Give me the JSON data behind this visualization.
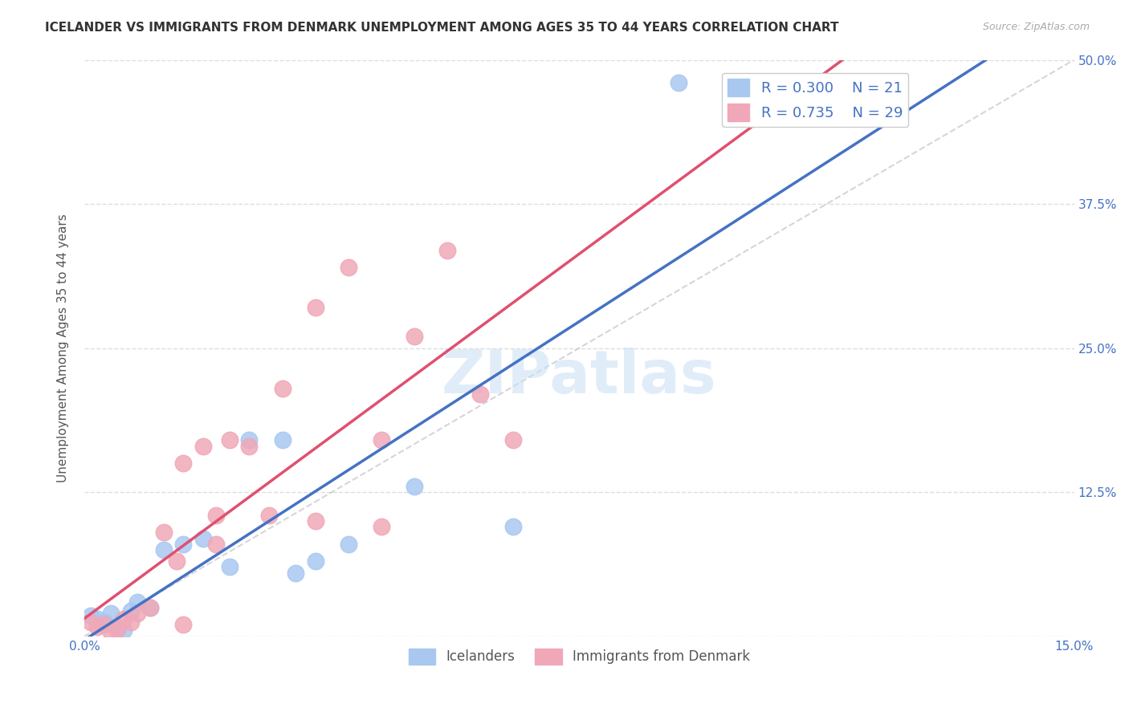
{
  "title": "ICELANDER VS IMMIGRANTS FROM DENMARK UNEMPLOYMENT AMONG AGES 35 TO 44 YEARS CORRELATION CHART",
  "source": "Source: ZipAtlas.com",
  "ylabel": "Unemployment Among Ages 35 to 44 years",
  "xlim": [
    0.0,
    0.15
  ],
  "ylim": [
    0.0,
    0.5
  ],
  "background_color": "#ffffff",
  "grid_color": "#dddddd",
  "watermark": "ZIPatlas",
  "icelanders_color": "#a8c8f0",
  "denmark_color": "#f0a8b8",
  "icelanders_line_color": "#4472c4",
  "denmark_line_color": "#e05070",
  "diagonal_line_color": "#cccccc",
  "legend_r_iceland": "0.300",
  "legend_n_iceland": "21",
  "legend_r_denmark": "0.735",
  "legend_n_denmark": "29",
  "icelanders_x": [
    0.001,
    0.002,
    0.003,
    0.004,
    0.005,
    0.006,
    0.007,
    0.008,
    0.01,
    0.012,
    0.015,
    0.018,
    0.022,
    0.025,
    0.03,
    0.032,
    0.035,
    0.04,
    0.05,
    0.065,
    0.09
  ],
  "icelanders_y": [
    0.018,
    0.015,
    0.012,
    0.02,
    0.008,
    0.005,
    0.022,
    0.03,
    0.025,
    0.075,
    0.08,
    0.085,
    0.06,
    0.17,
    0.17,
    0.055,
    0.065,
    0.08,
    0.13,
    0.095,
    0.48
  ],
  "denmark_x": [
    0.001,
    0.002,
    0.003,
    0.004,
    0.005,
    0.006,
    0.007,
    0.008,
    0.01,
    0.012,
    0.014,
    0.015,
    0.018,
    0.02,
    0.022,
    0.025,
    0.028,
    0.03,
    0.035,
    0.04,
    0.045,
    0.05,
    0.055,
    0.06,
    0.065,
    0.015,
    0.02,
    0.035,
    0.045
  ],
  "denmark_y": [
    0.012,
    0.008,
    0.01,
    0.004,
    0.006,
    0.015,
    0.012,
    0.02,
    0.025,
    0.09,
    0.065,
    0.15,
    0.165,
    0.08,
    0.17,
    0.165,
    0.105,
    0.215,
    0.285,
    0.32,
    0.17,
    0.26,
    0.335,
    0.21,
    0.17,
    0.01,
    0.105,
    0.1,
    0.095
  ]
}
